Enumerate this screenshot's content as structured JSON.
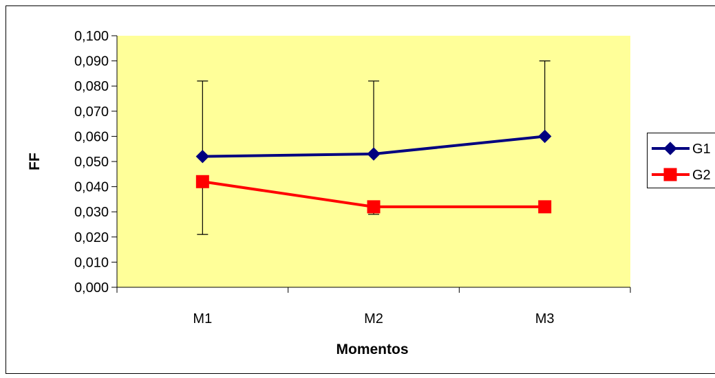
{
  "chart_data": {
    "type": "line",
    "title": "",
    "xlabel": "Momentos",
    "ylabel": "FF",
    "categories": [
      "M1",
      "M2",
      "M3"
    ],
    "ylim": [
      0,
      0.1
    ],
    "yticks": [
      "0,000",
      "0,010",
      "0,020",
      "0,030",
      "0,040",
      "0,050",
      "0,060",
      "0,070",
      "0,080",
      "0,090",
      "0,100"
    ],
    "grid": false,
    "plot_background": "#ffff99",
    "legend_position": "right",
    "series": [
      {
        "name": "G1",
        "color": "#000080",
        "marker": "diamond",
        "values": [
          0.052,
          0.053,
          0.06
        ],
        "error_upper": [
          0.082,
          0.082,
          0.09
        ]
      },
      {
        "name": "G2",
        "color": "#ff0000",
        "marker": "square",
        "values": [
          0.042,
          0.032,
          0.032
        ],
        "error_lower": [
          0.021,
          0.029,
          null
        ]
      }
    ]
  }
}
